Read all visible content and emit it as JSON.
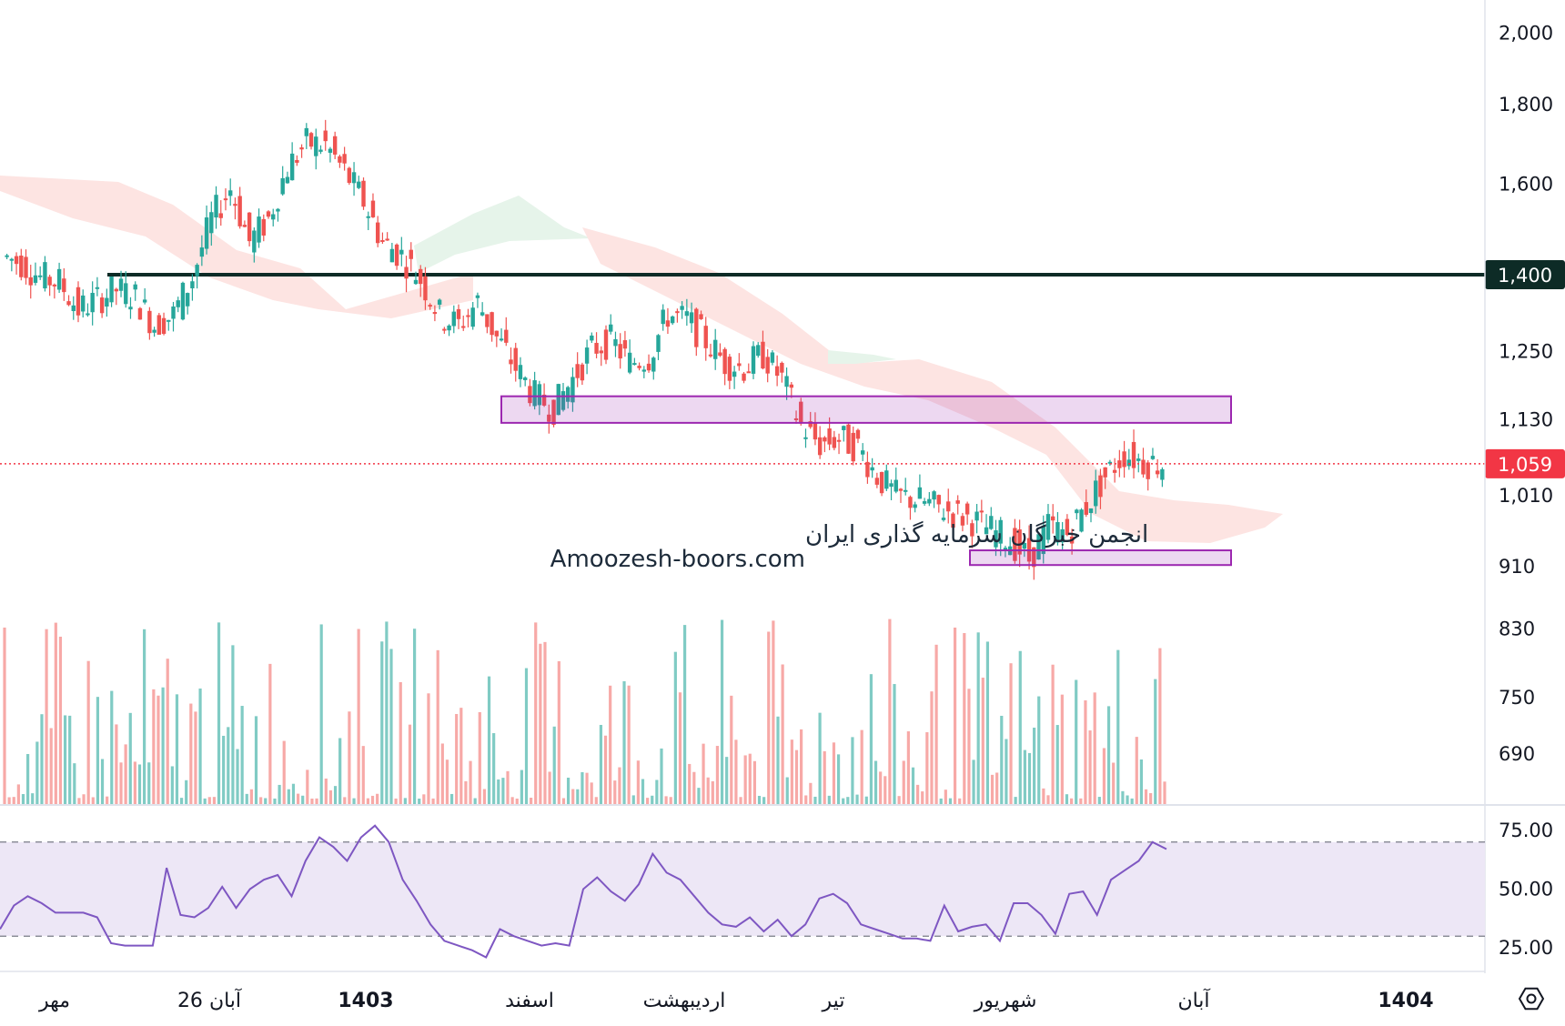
{
  "chart_data": {
    "type": "candlestick",
    "price_axis": {
      "labels": [
        "2,000",
        "1,800",
        "1,600",
        "1,400",
        "1,250",
        "1,130",
        "1,059",
        "1,010",
        "910",
        "830",
        "750",
        "690"
      ],
      "scale": "log",
      "range": [
        640,
        2100
      ]
    },
    "last_price": {
      "value": 1059,
      "label": "1,059",
      "color": "#f23645"
    },
    "horizontal_line": {
      "value": 1400,
      "label": "1,400",
      "color": "#0d2b26"
    },
    "support_zones": [
      {
        "low": 1125,
        "high": 1170,
        "from": "اسفند",
        "to": "آبان",
        "color": "#9c27b0"
      },
      {
        "low": 912,
        "high": 932,
        "from": "شهریور",
        "to": "آبان",
        "color": "#9c27b0"
      }
    ],
    "price_series": {
      "up_color": "#26a69a",
      "down_color": "#ef5350",
      "close_samples": [
        1440,
        1425,
        1395,
        1385,
        1330,
        1350,
        1370,
        1355,
        1300,
        1320,
        1395,
        1520,
        1590,
        1470,
        1520,
        1640,
        1700,
        1695,
        1630,
        1560,
        1470,
        1440,
        1390,
        1320,
        1300,
        1345,
        1275,
        1220,
        1170,
        1150,
        1200,
        1255,
        1270,
        1230,
        1240,
        1320,
        1310,
        1270,
        1230,
        1220,
        1245,
        1200,
        1120,
        1090,
        1100,
        1085,
        1040,
        1010,
        1005,
        995,
        985,
        975,
        960,
        945,
        920,
        965,
        955,
        995,
        1040,
        1075,
        1062,
        1059
      ]
    },
    "volume_series": {
      "up_color": "#80cbc4",
      "down_color": "#f7a9a7"
    },
    "ichimoku_cloud": {
      "bear_color": "#fde4e2",
      "bull_color": "#e6f4ea"
    },
    "rsi": {
      "labels": [
        "75.00",
        "50.00",
        "25.00"
      ],
      "range": [
        15,
        85
      ],
      "upper_band": 70,
      "lower_band": 30,
      "line_color": "#7e57c2",
      "band_fill": "#ede7f6",
      "values": [
        33,
        43,
        47,
        44,
        40,
        40,
        40,
        38,
        27,
        26,
        26,
        26,
        59,
        39,
        38,
        42,
        51,
        42,
        50,
        54,
        56,
        47,
        62,
        72,
        68,
        62,
        72,
        77,
        70,
        54,
        45,
        35,
        28,
        26,
        24,
        21,
        33,
        30,
        28,
        26,
        27,
        26,
        50,
        55,
        49,
        45,
        52,
        65,
        57,
        54,
        47,
        40,
        35,
        34,
        38,
        32,
        37,
        30,
        35,
        46,
        48,
        44,
        35,
        33,
        31,
        29,
        29,
        28,
        43,
        32,
        34,
        35,
        28,
        44,
        44,
        39,
        31,
        48,
        49,
        39,
        54,
        58,
        62,
        70,
        67
      ]
    },
    "time_axis": [
      {
        "label": "مهر",
        "bold": false
      },
      {
        "label": "26 آبان",
        "bold": false
      },
      {
        "label": "1403",
        "bold": true
      },
      {
        "label": "اسفند",
        "bold": false
      },
      {
        "label": "اردیبهشت",
        "bold": false
      },
      {
        "label": "تیر",
        "bold": false
      },
      {
        "label": "شهریور",
        "bold": false
      },
      {
        "label": "آبان",
        "bold": false
      },
      {
        "label": "1404",
        "bold": true
      }
    ]
  },
  "watermark": {
    "line1": "انجمن خبرگان سرمایه گذاری ایران",
    "line2": "Amoozesh-boors.com"
  },
  "icons": {
    "settings": "settings-gear-icon"
  }
}
